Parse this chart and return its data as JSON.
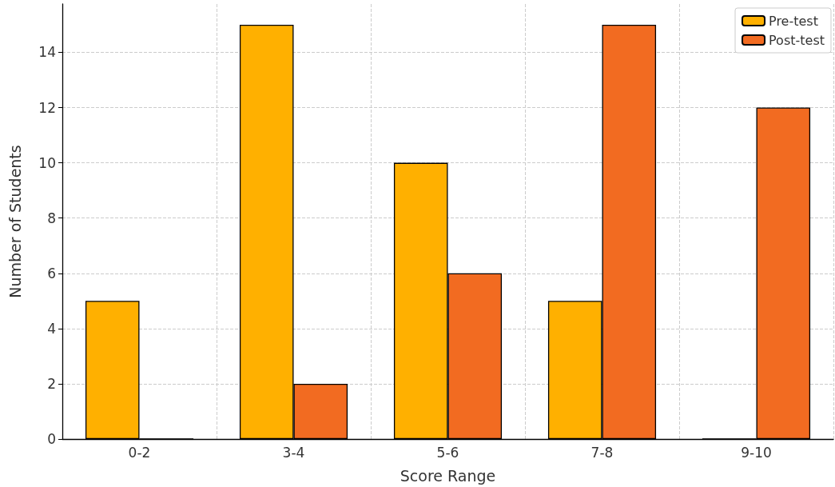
{
  "chart_data": {
    "type": "bar",
    "xlabel": "Score Range",
    "ylabel": "Number of Students",
    "categories": [
      "0-2",
      "3-4",
      "5-6",
      "7-8",
      "9-10"
    ],
    "series": [
      {
        "name": "Pre-test",
        "color": "#ffb000",
        "values": [
          5,
          15,
          10,
          5,
          0
        ]
      },
      {
        "name": "Post-test",
        "color": "#f26b21",
        "values": [
          0,
          2,
          6,
          15,
          12
        ]
      }
    ],
    "ylim": [
      0,
      15.75
    ],
    "yticks": [
      0,
      2,
      4,
      6,
      8,
      10,
      12,
      14
    ],
    "grid": true,
    "legend": "top right"
  }
}
